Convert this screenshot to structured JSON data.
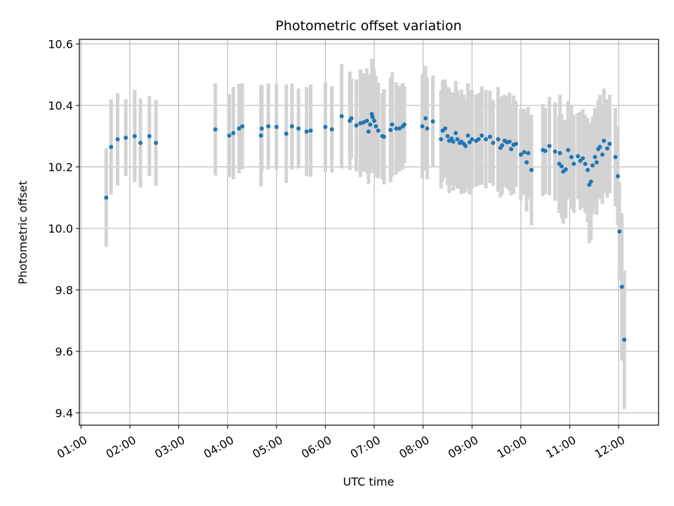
{
  "chart_data": {
    "type": "scatter",
    "title": "Photometric offset variation",
    "xlabel": "UTC time",
    "ylabel": "Photometric offset",
    "x_ticks": [
      "01:00",
      "02:00",
      "03:00",
      "04:00",
      "05:00",
      "06:00",
      "07:00",
      "08:00",
      "09:00",
      "10:00",
      "11:00",
      "12:00"
    ],
    "y_ticks": [
      "9.4",
      "9.6",
      "9.8",
      "10.0",
      "10.2",
      "10.4",
      "10.6"
    ],
    "xlim": [
      "00:58",
      "12:49"
    ],
    "ylim": [
      9.36,
      10.615
    ],
    "grid": true,
    "colors": {
      "point": "#1f77b4",
      "errorbar": "#d3d3d3",
      "grid": "#b0b0b0"
    },
    "points": [
      {
        "t": "01:31",
        "y": 10.1,
        "e": 0.16
      },
      {
        "t": "01:37",
        "y": 10.265,
        "e": 0.155
      },
      {
        "t": "01:45",
        "y": 10.29,
        "e": 0.15
      },
      {
        "t": "01:55",
        "y": 10.295,
        "e": 0.125
      },
      {
        "t": "02:06",
        "y": 10.3,
        "e": 0.15
      },
      {
        "t": "02:13",
        "y": 10.278,
        "e": 0.145
      },
      {
        "t": "02:24",
        "y": 10.3,
        "e": 0.13
      },
      {
        "t": "02:32",
        "y": 10.278,
        "e": 0.14
      },
      {
        "t": "03:45",
        "y": 10.322,
        "e": 0.15
      },
      {
        "t": "04:02",
        "y": 10.302,
        "e": 0.135
      },
      {
        "t": "04:07",
        "y": 10.31,
        "e": 0.15
      },
      {
        "t": "04:14",
        "y": 10.325,
        "e": 0.145
      },
      {
        "t": "04:18",
        "y": 10.332,
        "e": 0.14
      },
      {
        "t": "04:41",
        "y": 10.302,
        "e": 0.165
      },
      {
        "t": "04:42",
        "y": 10.325,
        "e": 0.14
      },
      {
        "t": "04:50",
        "y": 10.332,
        "e": 0.14
      },
      {
        "t": "05:00",
        "y": 10.33,
        "e": 0.14
      },
      {
        "t": "05:12",
        "y": 10.308,
        "e": 0.16
      },
      {
        "t": "05:19",
        "y": 10.332,
        "e": 0.14
      },
      {
        "t": "05:27",
        "y": 10.325,
        "e": 0.13
      },
      {
        "t": "05:37",
        "y": 10.315,
        "e": 0.145
      },
      {
        "t": "05:42",
        "y": 10.318,
        "e": 0.15
      },
      {
        "t": "06:00",
        "y": 10.33,
        "e": 0.145
      },
      {
        "t": "06:08",
        "y": 10.322,
        "e": 0.14
      },
      {
        "t": "06:20",
        "y": 10.365,
        "e": 0.17
      },
      {
        "t": "06:30",
        "y": 10.35,
        "e": 0.16
      },
      {
        "t": "06:32",
        "y": 10.358,
        "e": 0.13
      },
      {
        "t": "06:38",
        "y": 10.335,
        "e": 0.15
      },
      {
        "t": "06:43",
        "y": 10.342,
        "e": 0.175
      },
      {
        "t": "06:47",
        "y": 10.345,
        "e": 0.16
      },
      {
        "t": "06:51",
        "y": 10.35,
        "e": 0.17
      },
      {
        "t": "06:53",
        "y": 10.315,
        "e": 0.17
      },
      {
        "t": "06:55",
        "y": 10.338,
        "e": 0.16
      },
      {
        "t": "06:57",
        "y": 10.372,
        "e": 0.18
      },
      {
        "t": "06:58",
        "y": 10.362,
        "e": 0.17
      },
      {
        "t": "07:00",
        "y": 10.35,
        "e": 0.17
      },
      {
        "t": "07:02",
        "y": 10.332,
        "e": 0.165
      },
      {
        "t": "07:05",
        "y": 10.318,
        "e": 0.155
      },
      {
        "t": "07:10",
        "y": 10.3,
        "e": 0.14
      },
      {
        "t": "07:12",
        "y": 10.298,
        "e": 0.155
      },
      {
        "t": "07:20",
        "y": 10.32,
        "e": 0.17
      },
      {
        "t": "07:22",
        "y": 10.338,
        "e": 0.17
      },
      {
        "t": "07:27",
        "y": 10.325,
        "e": 0.15
      },
      {
        "t": "07:31",
        "y": 10.325,
        "e": 0.14
      },
      {
        "t": "07:35",
        "y": 10.332,
        "e": 0.14
      },
      {
        "t": "07:37",
        "y": 10.338,
        "e": 0.125
      },
      {
        "t": "07:59",
        "y": 10.332,
        "e": 0.17
      },
      {
        "t": "08:03",
        "y": 10.358,
        "e": 0.17
      },
      {
        "t": "08:05",
        "y": 10.325,
        "e": 0.165
      },
      {
        "t": "08:12",
        "y": 10.348,
        "e": 0.15
      },
      {
        "t": "08:22",
        "y": 10.29,
        "e": 0.16
      },
      {
        "t": "08:24",
        "y": 10.318,
        "e": 0.165
      },
      {
        "t": "08:27",
        "y": 10.325,
        "e": 0.16
      },
      {
        "t": "08:30",
        "y": 10.3,
        "e": 0.16
      },
      {
        "t": "08:32",
        "y": 10.285,
        "e": 0.17
      },
      {
        "t": "08:35",
        "y": 10.292,
        "e": 0.15
      },
      {
        "t": "08:37",
        "y": 10.282,
        "e": 0.16
      },
      {
        "t": "08:40",
        "y": 10.31,
        "e": 0.17
      },
      {
        "t": "08:42",
        "y": 10.29,
        "e": 0.16
      },
      {
        "t": "08:45",
        "y": 10.278,
        "e": 0.15
      },
      {
        "t": "08:47",
        "y": 10.282,
        "e": 0.17
      },
      {
        "t": "08:50",
        "y": 10.275,
        "e": 0.16
      },
      {
        "t": "08:52",
        "y": 10.268,
        "e": 0.15
      },
      {
        "t": "08:55",
        "y": 10.302,
        "e": 0.17
      },
      {
        "t": "08:57",
        "y": 10.28,
        "e": 0.17
      },
      {
        "t": "09:00",
        "y": 10.29,
        "e": 0.16
      },
      {
        "t": "09:05",
        "y": 10.285,
        "e": 0.15
      },
      {
        "t": "09:08",
        "y": 10.29,
        "e": 0.15
      },
      {
        "t": "09:12",
        "y": 10.302,
        "e": 0.16
      },
      {
        "t": "09:17",
        "y": 10.29,
        "e": 0.16
      },
      {
        "t": "09:22",
        "y": 10.298,
        "e": 0.15
      },
      {
        "t": "09:26",
        "y": 10.278,
        "e": 0.14
      },
      {
        "t": "09:32",
        "y": 10.29,
        "e": 0.17
      },
      {
        "t": "09:35",
        "y": 10.262,
        "e": 0.16
      },
      {
        "t": "09:37",
        "y": 10.27,
        "e": 0.16
      },
      {
        "t": "09:40",
        "y": 10.285,
        "e": 0.15
      },
      {
        "t": "09:43",
        "y": 10.28,
        "e": 0.15
      },
      {
        "t": "09:46",
        "y": 10.282,
        "e": 0.16
      },
      {
        "t": "09:48",
        "y": 10.258,
        "e": 0.15
      },
      {
        "t": "09:51",
        "y": 10.272,
        "e": 0.16
      },
      {
        "t": "09:54",
        "y": 10.275,
        "e": 0.14
      },
      {
        "t": "10:00",
        "y": 10.24,
        "e": 0.15
      },
      {
        "t": "10:04",
        "y": 10.248,
        "e": 0.14
      },
      {
        "t": "10:07",
        "y": 10.215,
        "e": 0.16
      },
      {
        "t": "10:09",
        "y": 10.245,
        "e": 0.15
      },
      {
        "t": "10:13",
        "y": 10.19,
        "e": 0.18
      },
      {
        "t": "10:27",
        "y": 10.255,
        "e": 0.15
      },
      {
        "t": "10:30",
        "y": 10.252,
        "e": 0.14
      },
      {
        "t": "10:35",
        "y": 10.268,
        "e": 0.16
      },
      {
        "t": "10:42",
        "y": 10.25,
        "e": 0.16
      },
      {
        "t": "10:47",
        "y": 10.21,
        "e": 0.16
      },
      {
        "t": "10:48",
        "y": 10.245,
        "e": 0.19
      },
      {
        "t": "10:50",
        "y": 10.202,
        "e": 0.17
      },
      {
        "t": "10:52",
        "y": 10.185,
        "e": 0.17
      },
      {
        "t": "10:55",
        "y": 10.192,
        "e": 0.16
      },
      {
        "t": "10:58",
        "y": 10.255,
        "e": 0.16
      },
      {
        "t": "11:02",
        "y": 10.232,
        "e": 0.17
      },
      {
        "t": "11:05",
        "y": 10.21,
        "e": 0.16
      },
      {
        "t": "11:10",
        "y": 10.235,
        "e": 0.14
      },
      {
        "t": "11:13",
        "y": 10.22,
        "e": 0.16
      },
      {
        "t": "11:16",
        "y": 10.228,
        "e": 0.16
      },
      {
        "t": "11:19",
        "y": 10.21,
        "e": 0.16
      },
      {
        "t": "11:22",
        "y": 10.19,
        "e": 0.17
      },
      {
        "t": "11:24",
        "y": 10.142,
        "e": 0.19
      },
      {
        "t": "11:26",
        "y": 10.152,
        "e": 0.19
      },
      {
        "t": "11:28",
        "y": 10.205,
        "e": 0.16
      },
      {
        "t": "11:31",
        "y": 10.232,
        "e": 0.16
      },
      {
        "t": "11:33",
        "y": 10.215,
        "e": 0.17
      },
      {
        "t": "11:35",
        "y": 10.258,
        "e": 0.16
      },
      {
        "t": "11:37",
        "y": 10.265,
        "e": 0.17
      },
      {
        "t": "11:40",
        "y": 10.24,
        "e": 0.16
      },
      {
        "t": "11:42",
        "y": 10.285,
        "e": 0.17
      },
      {
        "t": "11:46",
        "y": 10.26,
        "e": 0.16
      },
      {
        "t": "11:49",
        "y": 10.275,
        "e": 0.16
      },
      {
        "t": "11:56",
        "y": 10.232,
        "e": 0.16
      },
      {
        "t": "11:59",
        "y": 10.17,
        "e": 0.16
      },
      {
        "t": "12:01",
        "y": 9.99,
        "e": 0.16
      },
      {
        "t": "12:04",
        "y": 9.81,
        "e": 0.24
      },
      {
        "t": "12:07",
        "y": 9.638,
        "e": 0.225
      }
    ]
  }
}
